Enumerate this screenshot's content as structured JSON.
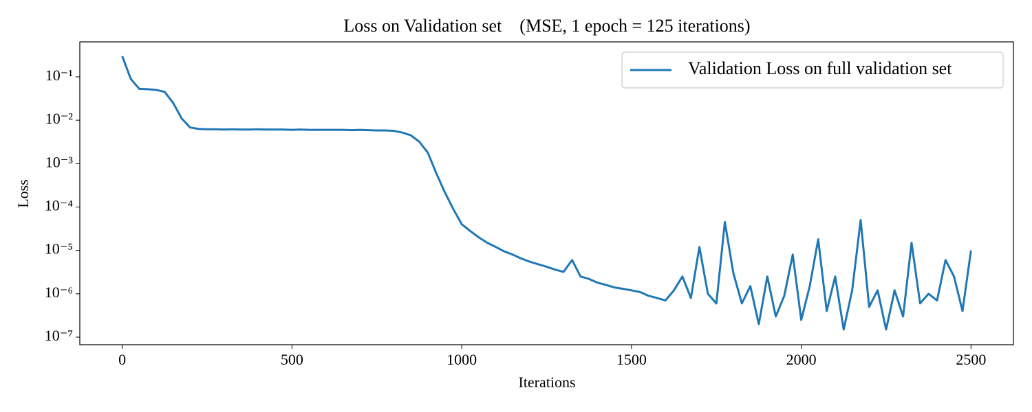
{
  "chart_data": {
    "type": "line",
    "title": "Loss on Validation set    (MSE, 1 epoch = 125 iterations)",
    "xlabel": "Iterations",
    "ylabel": "Loss",
    "log_y": true,
    "grid": false,
    "legend": "upper right",
    "xlim": [
      -125,
      2625
    ],
    "ylim": [
      6.7e-08,
      0.64
    ],
    "xticks": [
      0,
      500,
      1000,
      1500,
      2000,
      2500
    ],
    "yticks": [
      {
        "value": 1e-07,
        "label": "10⁻⁷"
      },
      {
        "value": 1e-06,
        "label": "10⁻⁶"
      },
      {
        "value": 1e-05,
        "label": "10⁻⁵"
      },
      {
        "value": 0.0001,
        "label": "10⁻⁴"
      },
      {
        "value": 0.001,
        "label": "10⁻³"
      },
      {
        "value": 0.01,
        "label": "10⁻²"
      },
      {
        "value": 0.1,
        "label": "10⁻¹"
      }
    ],
    "x": [
      0,
      25,
      50,
      75,
      100,
      125,
      150,
      175,
      200,
      225,
      250,
      275,
      300,
      325,
      350,
      375,
      400,
      425,
      450,
      475,
      500,
      525,
      550,
      575,
      600,
      625,
      650,
      675,
      700,
      725,
      750,
      775,
      800,
      825,
      850,
      875,
      900,
      925,
      950,
      975,
      1000,
      1025,
      1050,
      1075,
      1100,
      1125,
      1150,
      1175,
      1200,
      1225,
      1250,
      1275,
      1300,
      1325,
      1350,
      1375,
      1400,
      1425,
      1450,
      1475,
      1500,
      1525,
      1550,
      1575,
      1600,
      1625,
      1650,
      1675,
      1700,
      1725,
      1750,
      1775,
      1800,
      1825,
      1850,
      1875,
      1900,
      1925,
      1950,
      1975,
      2000,
      2025,
      2050,
      2075,
      2100,
      2125,
      2150,
      2175,
      2200,
      2225,
      2250,
      2275,
      2300,
      2325,
      2350,
      2375,
      2400,
      2425,
      2450,
      2475,
      2500
    ],
    "series": [
      {
        "name": "Validation Loss on full validation set",
        "color": "#1f77b4",
        "values": [
          0.3,
          0.09,
          0.053,
          0.052,
          0.05,
          0.045,
          0.025,
          0.011,
          0.0068,
          0.0063,
          0.0062,
          0.0062,
          0.0061,
          0.0062,
          0.0061,
          0.0061,
          0.0062,
          0.0061,
          0.0061,
          0.0061,
          0.006,
          0.0061,
          0.006,
          0.006,
          0.006,
          0.006,
          0.006,
          0.0059,
          0.006,
          0.0059,
          0.0058,
          0.0058,
          0.0057,
          0.0052,
          0.0045,
          0.0032,
          0.0018,
          0.0006,
          0.00022,
          9e-05,
          4e-05,
          2.8e-05,
          2e-05,
          1.5e-05,
          1.2e-05,
          9.5e-06,
          8e-06,
          6.5e-06,
          5.5e-06,
          4.8e-06,
          4.2e-06,
          3.6e-06,
          3.2e-06,
          6e-06,
          2.5e-06,
          2.2e-06,
          1.8e-06,
          1.6e-06,
          1.4e-06,
          1.3e-06,
          1.2e-06,
          1.1e-06,
          9e-07,
          8e-07,
          7e-07,
          1.2e-06,
          2.5e-06,
          8e-07,
          1.2e-05,
          1e-06,
          6e-07,
          4.5e-05,
          3e-06,
          6e-07,
          1.5e-06,
          2e-07,
          2.5e-06,
          3e-07,
          9e-07,
          8e-06,
          2.5e-07,
          1.5e-06,
          1.8e-05,
          4e-07,
          2.5e-06,
          1.5e-07,
          1.2e-06,
          5e-05,
          5e-07,
          1.2e-06,
          1.5e-07,
          1.2e-06,
          3e-07,
          1.5e-05,
          6e-07,
          1e-06,
          7e-07,
          6e-06,
          2.5e-06,
          4e-07,
          1e-05
        ]
      }
    ]
  }
}
